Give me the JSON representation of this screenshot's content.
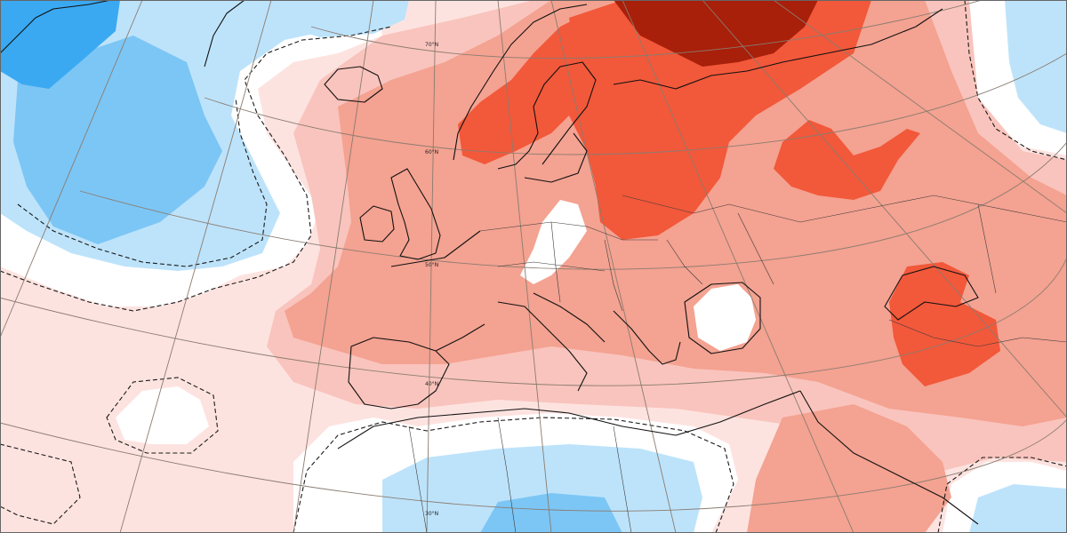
{
  "map": {
    "latitude_labels": [
      "70°N",
      "60°N",
      "50°N",
      "40°N",
      "30°N"
    ],
    "palette": {
      "cold_strong": "#3aa9f2",
      "cold_mid": "#7cc6f5",
      "cold_light": "#bde3fb",
      "cold_faint": "#dff1fd",
      "neutral": "#ffffff",
      "warm_faint": "#fde3e0",
      "warm_light": "#f9c4bd",
      "warm_mid": "#f4a291",
      "warm_strong": "#f2583a",
      "warm_intense": "#e83f24",
      "warm_extreme": "#a81f0a",
      "graticule": "#8a7c70",
      "coastline": "#111111"
    }
  }
}
